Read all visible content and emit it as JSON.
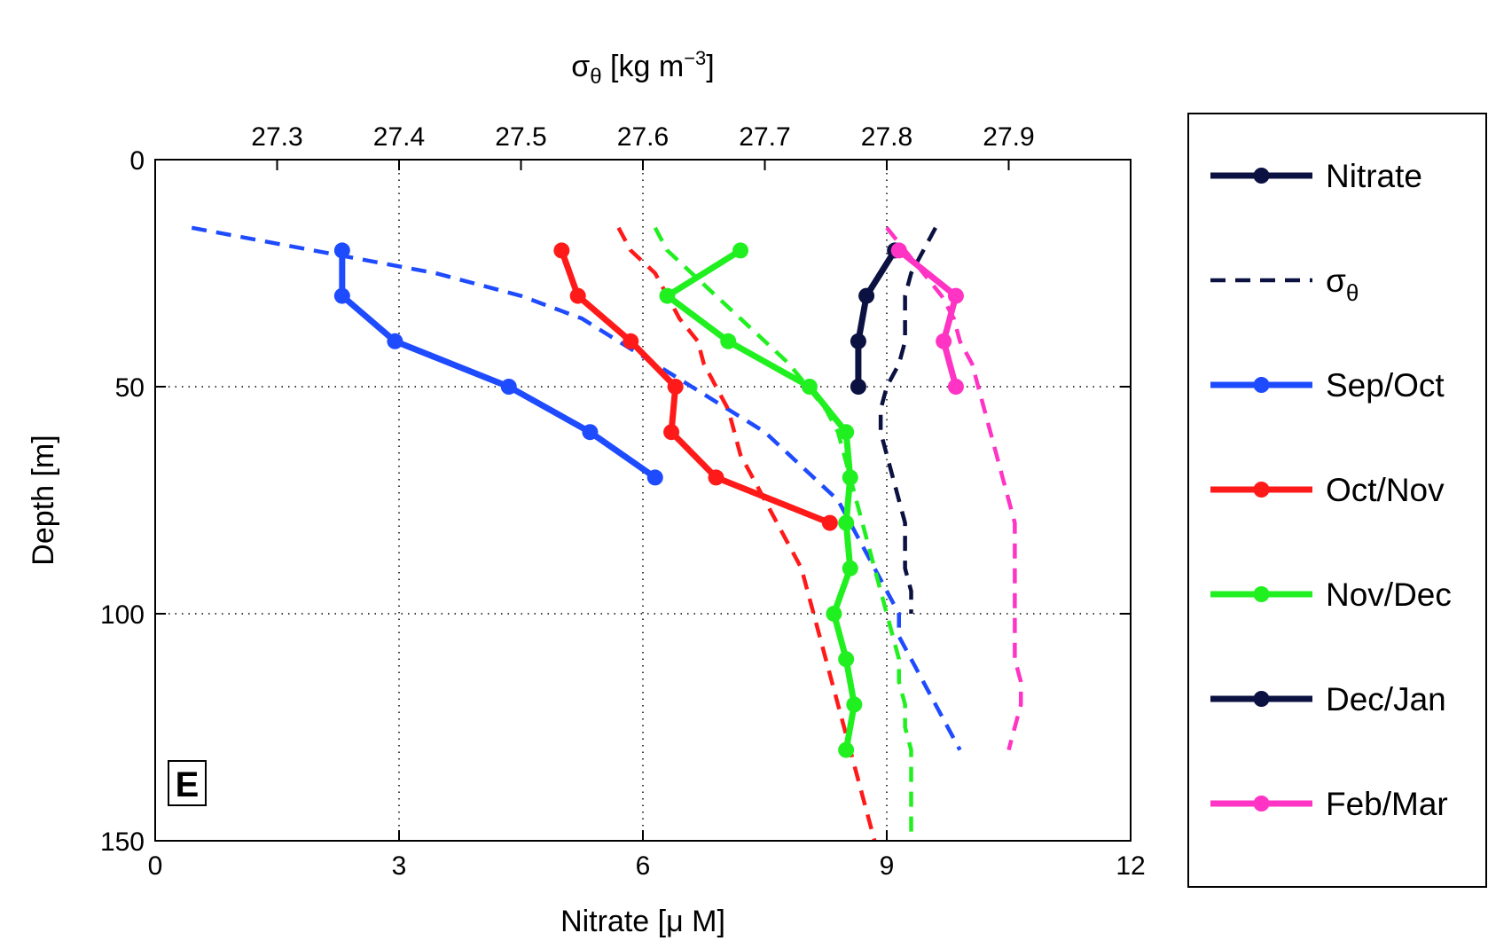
{
  "chart_data": {
    "type": "line",
    "panel_label": "E",
    "xlabel": "Nitrate [μ M]",
    "top_xlabel_main": "σ",
    "top_xlabel_sub": "θ",
    "top_xlabel_unit": " [kg m",
    "top_xlabel_exp": "−3",
    "top_xlabel_close": "]",
    "ylabel": "Depth [m]",
    "xlim": [
      0,
      12
    ],
    "ylim": [
      0,
      150
    ],
    "y_reversed": true,
    "x_ticks": [
      0,
      3,
      6,
      9,
      12
    ],
    "y_ticks": [
      0,
      50,
      100,
      150
    ],
    "sigma_lim": [
      27.2,
      28.0
    ],
    "sigma_ticks": [
      "27.3",
      "27.4",
      "27.5",
      "27.6",
      "27.7",
      "27.8",
      "27.9"
    ],
    "grid": true,
    "legend_position": "right",
    "legend": [
      {
        "label": "Nitrate",
        "color": "#0b1140",
        "style": "solid-marker"
      },
      {
        "label": "σ",
        "sub": "θ",
        "color": "#0b1140",
        "style": "dashed"
      },
      {
        "label": "Sep/Oct",
        "color": "#1f4bff",
        "style": "solid-marker"
      },
      {
        "label": "Oct/Nov",
        "color": "#ff1a1a",
        "style": "solid-marker"
      },
      {
        "label": "Nov/Dec",
        "color": "#21f020",
        "style": "solid-marker"
      },
      {
        "label": "Dec/Jan",
        "color": "#0b1140",
        "style": "solid-marker"
      },
      {
        "label": "Feb/Mar",
        "color": "#ff33c4",
        "style": "solid-marker"
      }
    ],
    "nitrate_series": [
      {
        "name": "Sep/Oct",
        "color": "#1f4bff",
        "points": [
          [
            2.3,
            20
          ],
          [
            2.3,
            30
          ],
          [
            2.95,
            40
          ],
          [
            4.35,
            50
          ],
          [
            5.35,
            60
          ],
          [
            6.15,
            70
          ]
        ]
      },
      {
        "name": "Oct/Nov",
        "color": "#ff1a1a",
        "points": [
          [
            5.0,
            20
          ],
          [
            5.2,
            30
          ],
          [
            5.85,
            40
          ],
          [
            6.4,
            50
          ],
          [
            6.35,
            60
          ],
          [
            6.9,
            70
          ],
          [
            8.3,
            80
          ]
        ]
      },
      {
        "name": "Nov/Dec",
        "color": "#21f020",
        "points": [
          [
            7.2,
            20
          ],
          [
            6.3,
            30
          ],
          [
            7.05,
            40
          ],
          [
            8.05,
            50
          ],
          [
            8.5,
            60
          ],
          [
            8.55,
            70
          ],
          [
            8.5,
            80
          ],
          [
            8.55,
            90
          ],
          [
            8.35,
            100
          ],
          [
            8.5,
            110
          ],
          [
            8.6,
            120
          ],
          [
            8.5,
            130
          ]
        ]
      },
      {
        "name": "Dec/Jan",
        "color": "#0b1140",
        "points": [
          [
            9.1,
            20
          ],
          [
            8.75,
            30
          ],
          [
            8.65,
            40
          ],
          [
            8.65,
            50
          ]
        ]
      },
      {
        "name": "Feb/Mar",
        "color": "#ff33c4",
        "points": [
          [
            9.15,
            20
          ],
          [
            9.85,
            30
          ],
          [
            9.7,
            40
          ],
          [
            9.85,
            50
          ]
        ]
      }
    ],
    "sigma_series": [
      {
        "name": "Sep/Oct",
        "color": "#1f4bff",
        "points": [
          [
            27.23,
            15
          ],
          [
            27.33,
            20
          ],
          [
            27.43,
            25
          ],
          [
            27.5,
            30
          ],
          [
            27.55,
            35
          ],
          [
            27.58,
            40
          ],
          [
            27.61,
            45
          ],
          [
            27.64,
            50
          ],
          [
            27.67,
            55
          ],
          [
            27.7,
            60
          ],
          [
            27.72,
            65
          ],
          [
            27.74,
            70
          ],
          [
            27.76,
            75
          ],
          [
            27.77,
            80
          ],
          [
            27.78,
            85
          ],
          [
            27.79,
            90
          ],
          [
            27.8,
            95
          ],
          [
            27.81,
            100
          ],
          [
            27.81,
            105
          ],
          [
            27.82,
            110
          ],
          [
            27.83,
            115
          ],
          [
            27.84,
            120
          ],
          [
            27.85,
            125
          ],
          [
            27.86,
            130
          ]
        ]
      },
      {
        "name": "Oct/Nov",
        "color": "#ff1a1a",
        "points": [
          [
            27.58,
            15
          ],
          [
            27.59,
            20
          ],
          [
            27.61,
            25
          ],
          [
            27.62,
            30
          ],
          [
            27.63,
            35
          ],
          [
            27.645,
            40
          ],
          [
            27.65,
            45
          ],
          [
            27.66,
            50
          ],
          [
            27.67,
            55
          ],
          [
            27.675,
            60
          ],
          [
            27.68,
            65
          ],
          [
            27.69,
            70
          ],
          [
            27.7,
            75
          ],
          [
            27.71,
            80
          ],
          [
            27.72,
            85
          ],
          [
            27.73,
            90
          ],
          [
            27.735,
            95
          ],
          [
            27.74,
            100
          ],
          [
            27.745,
            105
          ],
          [
            27.75,
            110
          ],
          [
            27.755,
            115
          ],
          [
            27.76,
            120
          ],
          [
            27.765,
            125
          ],
          [
            27.77,
            130
          ],
          [
            27.775,
            135
          ],
          [
            27.78,
            140
          ],
          [
            27.785,
            145
          ],
          [
            27.79,
            150
          ]
        ]
      },
      {
        "name": "Nov/Dec",
        "color": "#21f020",
        "points": [
          [
            27.61,
            15
          ],
          [
            27.62,
            20
          ],
          [
            27.64,
            25
          ],
          [
            27.66,
            30
          ],
          [
            27.68,
            35
          ],
          [
            27.7,
            40
          ],
          [
            27.72,
            45
          ],
          [
            27.735,
            50
          ],
          [
            27.75,
            55
          ],
          [
            27.76,
            60
          ],
          [
            27.765,
            65
          ],
          [
            27.77,
            70
          ],
          [
            27.775,
            75
          ],
          [
            27.78,
            80
          ],
          [
            27.785,
            85
          ],
          [
            27.79,
            90
          ],
          [
            27.795,
            95
          ],
          [
            27.8,
            100
          ],
          [
            27.805,
            105
          ],
          [
            27.81,
            110
          ],
          [
            27.81,
            115
          ],
          [
            27.815,
            120
          ],
          [
            27.815,
            125
          ],
          [
            27.82,
            130
          ],
          [
            27.82,
            135
          ],
          [
            27.82,
            140
          ],
          [
            27.82,
            145
          ],
          [
            27.82,
            150
          ]
        ]
      },
      {
        "name": "Dec/Jan",
        "color": "#0b1140",
        "points": [
          [
            27.84,
            15
          ],
          [
            27.83,
            20
          ],
          [
            27.82,
            25
          ],
          [
            27.815,
            30
          ],
          [
            27.815,
            35
          ],
          [
            27.815,
            40
          ],
          [
            27.81,
            45
          ],
          [
            27.8,
            50
          ],
          [
            27.795,
            55
          ],
          [
            27.795,
            60
          ],
          [
            27.8,
            65
          ],
          [
            27.805,
            70
          ],
          [
            27.81,
            75
          ],
          [
            27.815,
            80
          ],
          [
            27.815,
            85
          ],
          [
            27.815,
            90
          ],
          [
            27.82,
            95
          ],
          [
            27.82,
            100
          ]
        ]
      },
      {
        "name": "Feb/Mar",
        "color": "#ff33c4",
        "points": [
          [
            27.8,
            15
          ],
          [
            27.815,
            20
          ],
          [
            27.83,
            25
          ],
          [
            27.845,
            30
          ],
          [
            27.855,
            35
          ],
          [
            27.86,
            40
          ],
          [
            27.87,
            45
          ],
          [
            27.875,
            50
          ],
          [
            27.88,
            55
          ],
          [
            27.885,
            60
          ],
          [
            27.89,
            65
          ],
          [
            27.895,
            70
          ],
          [
            27.9,
            75
          ],
          [
            27.905,
            80
          ],
          [
            27.905,
            85
          ],
          [
            27.905,
            90
          ],
          [
            27.905,
            95
          ],
          [
            27.905,
            100
          ],
          [
            27.905,
            105
          ],
          [
            27.905,
            110
          ],
          [
            27.91,
            115
          ],
          [
            27.91,
            120
          ],
          [
            27.905,
            125
          ],
          [
            27.9,
            130
          ]
        ]
      }
    ]
  }
}
